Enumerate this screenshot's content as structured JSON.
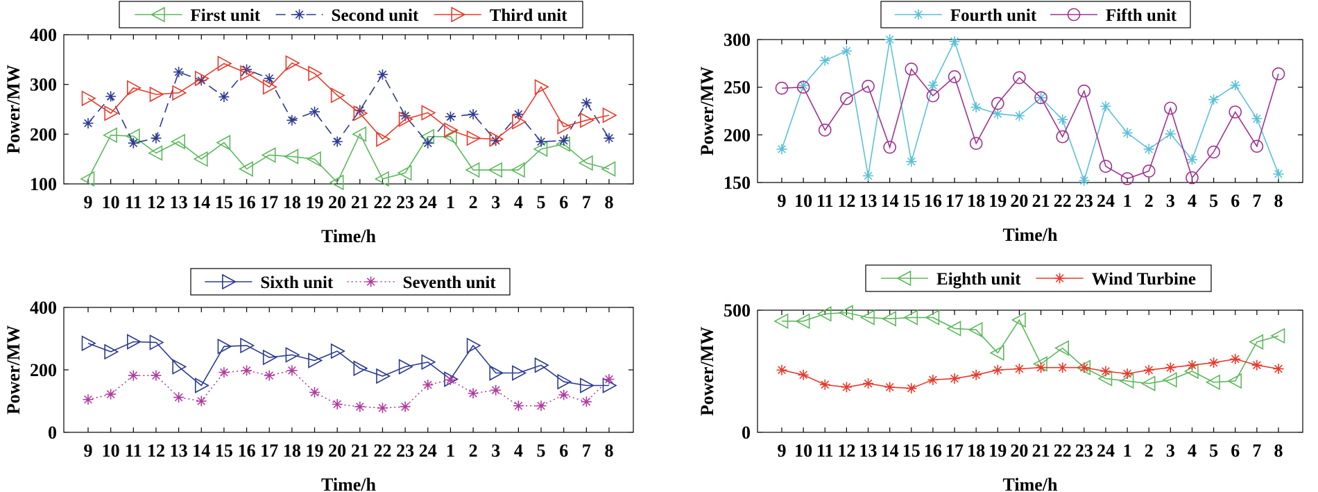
{
  "chart_data": [
    {
      "id": "p1",
      "type": "line",
      "x": [
        "9",
        "10",
        "11",
        "12",
        "13",
        "14",
        "15",
        "16",
        "17",
        "18",
        "19",
        "20",
        "21",
        "22",
        "23",
        "24",
        "1",
        "2",
        "3",
        "4",
        "5",
        "6",
        "7",
        "8"
      ],
      "ylabel": "Power/MW",
      "xlabel": "Time/h",
      "ylim": [
        100,
        400
      ],
      "yticks": [
        100,
        200,
        300,
        400
      ],
      "series": [
        {
          "name": "First unit",
          "color": "#5cb85c",
          "marker": "triangle-left",
          "dash": "solid",
          "values": [
            110,
            198,
            196,
            162,
            185,
            150,
            183,
            130,
            158,
            155,
            150,
            103,
            200,
            110,
            122,
            195,
            195,
            128,
            128,
            128,
            170,
            180,
            142,
            130
          ]
        },
        {
          "name": "Second unit",
          "color": "#2b3a8f",
          "marker": "asterisk",
          "dash": "dashed",
          "values": [
            222,
            276,
            182,
            192,
            325,
            308,
            275,
            330,
            312,
            228,
            245,
            185,
            248,
            320,
            237,
            182,
            235,
            240,
            187,
            240,
            185,
            187,
            263,
            192
          ]
        },
        {
          "name": "Third unit",
          "color": "#e8392a",
          "marker": "triangle-right",
          "dash": "solid",
          "values": [
            272,
            242,
            293,
            280,
            283,
            312,
            342,
            323,
            295,
            343,
            322,
            278,
            242,
            190,
            230,
            243,
            208,
            192,
            190,
            225,
            295,
            215,
            228,
            238
          ]
        }
      ]
    },
    {
      "id": "p2",
      "type": "line",
      "x": [
        "9",
        "10",
        "11",
        "12",
        "13",
        "14",
        "15",
        "16",
        "17",
        "18",
        "19",
        "20",
        "21",
        "22",
        "23",
        "24",
        "1",
        "2",
        "3",
        "4",
        "5",
        "6",
        "7",
        "8"
      ],
      "ylabel": "Power/MW",
      "xlabel": "Time/h",
      "ylim": [
        150,
        300
      ],
      "yticks": [
        150,
        200,
        250,
        300
      ],
      "series": [
        {
          "name": "Fourth unit",
          "color": "#5bc0d8",
          "marker": "asterisk",
          "dash": "solid",
          "values": [
            185,
            252,
            278,
            288,
            157,
            300,
            172,
            252,
            298,
            229,
            222,
            220,
            239,
            216,
            152,
            230,
            202,
            185,
            201,
            174,
            237,
            252,
            217,
            159
          ]
        },
        {
          "name": "Fifth unit",
          "color": "#a0308f",
          "marker": "circle",
          "dash": "solid",
          "values": [
            249,
            250,
            205,
            238,
            251,
            187,
            269,
            241,
            261,
            191,
            233,
            260,
            239,
            198,
            246,
            167,
            154,
            162,
            228,
            155,
            182,
            224,
            188,
            264
          ]
        }
      ]
    },
    {
      "id": "p3",
      "type": "line",
      "x": [
        "9",
        "10",
        "11",
        "12",
        "13",
        "14",
        "15",
        "16",
        "17",
        "18",
        "19",
        "20",
        "21",
        "22",
        "23",
        "24",
        "1",
        "2",
        "3",
        "4",
        "5",
        "6",
        "7",
        "8"
      ],
      "ylabel": "Power/MW",
      "xlabel": "Time/h",
      "ylim": [
        0,
        400
      ],
      "yticks": [
        0,
        200,
        400
      ],
      "series": [
        {
          "name": "Sixth unit",
          "color": "#2b3a8f",
          "marker": "triangle-right",
          "dash": "solid",
          "values": [
            285,
            258,
            290,
            288,
            210,
            150,
            275,
            278,
            240,
            248,
            230,
            260,
            205,
            180,
            210,
            225,
            170,
            278,
            190,
            190,
            215,
            162,
            150,
            150
          ]
        },
        {
          "name": "Seventh unit",
          "color": "#b03aa0",
          "marker": "asterisk",
          "dash": "dotted",
          "values": [
            105,
            122,
            182,
            182,
            112,
            100,
            192,
            198,
            182,
            198,
            128,
            90,
            82,
            78,
            82,
            152,
            168,
            125,
            135,
            85,
            85,
            120,
            98,
            170
          ]
        }
      ]
    },
    {
      "id": "p4",
      "type": "line",
      "x": [
        "9",
        "10",
        "11",
        "12",
        "13",
        "14",
        "15",
        "16",
        "17",
        "18",
        "19",
        "20",
        "21",
        "22",
        "23",
        "24",
        "1",
        "2",
        "3",
        "4",
        "5",
        "6",
        "7",
        "8"
      ],
      "ylabel": "Power/MW",
      "xlabel": "Time/h",
      "ylim": [
        0,
        500
      ],
      "yticks": [
        0,
        500
      ],
      "series": [
        {
          "name": "Eighth unit",
          "color": "#5cb85c",
          "marker": "triangle-left",
          "dash": "solid",
          "values": [
            455,
            455,
            485,
            490,
            470,
            465,
            470,
            470,
            425,
            420,
            325,
            460,
            280,
            345,
            265,
            220,
            210,
            200,
            215,
            250,
            205,
            210,
            370,
            395
          ]
        },
        {
          "name": "Wind Turbine",
          "color": "#e8392a",
          "marker": "asterisk",
          "dash": "solid",
          "values": [
            255,
            235,
            195,
            185,
            200,
            185,
            180,
            215,
            220,
            235,
            255,
            260,
            265,
            265,
            265,
            250,
            240,
            255,
            265,
            275,
            285,
            300,
            275,
            260
          ]
        }
      ]
    }
  ]
}
